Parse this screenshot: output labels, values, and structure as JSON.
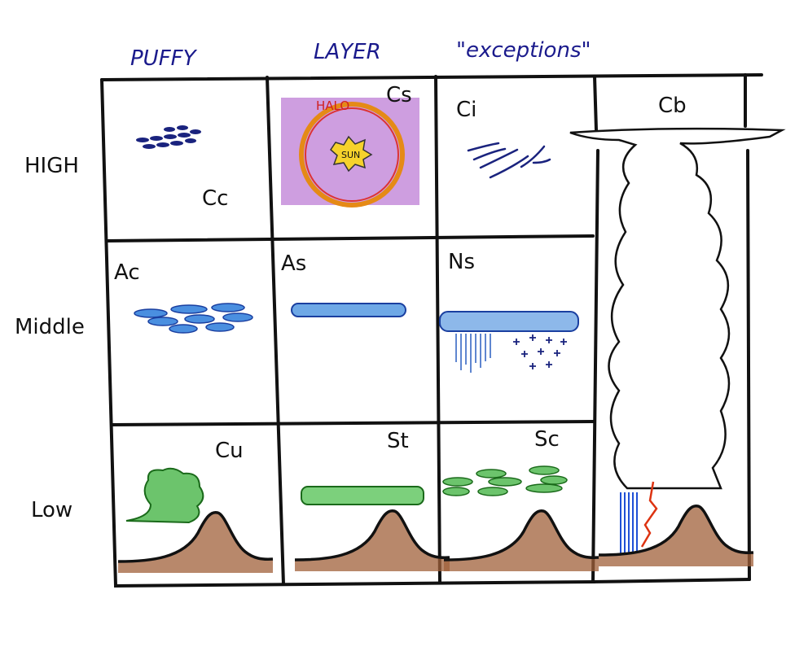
{
  "header": {
    "columns": [
      "PUFFY",
      "LAYER",
      "\"exceptions\""
    ]
  },
  "rows": [
    "HIGH",
    "Middle",
    "Low"
  ],
  "cells": [
    [
      "Cc",
      "Cs",
      "Ci",
      "Cb"
    ],
    [
      "Ac",
      "As",
      "Ns"
    ],
    [
      "Cu",
      "St",
      "Sc"
    ]
  ],
  "annotations": {
    "halo": "HALO",
    "sun": "SUN"
  }
}
